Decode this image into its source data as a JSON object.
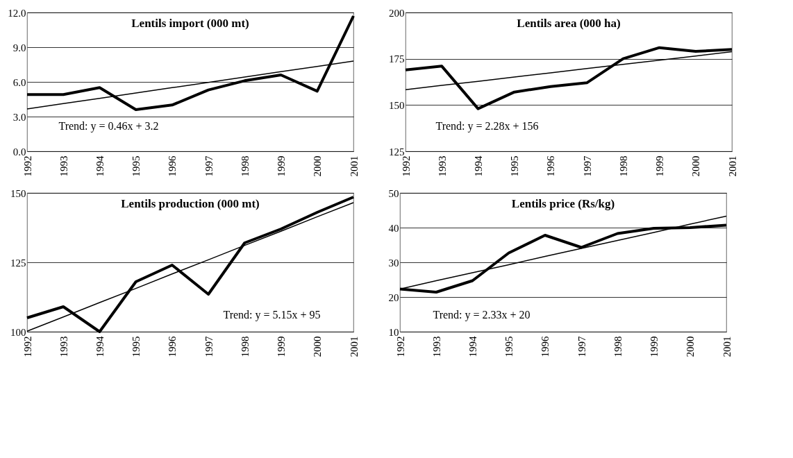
{
  "chart_data": [
    {
      "type": "line",
      "title": "Lentils import (000 mt)",
      "categories": [
        "1992",
        "1993",
        "1994",
        "1995",
        "1996",
        "1997",
        "1998",
        "1999",
        "2000",
        "2001"
      ],
      "series": [
        {
          "color": "#000000",
          "values": [
            4.9,
            4.9,
            5.5,
            3.6,
            4.0,
            5.3,
            6.1,
            6.6,
            5.2,
            11.7
          ]
        },
        {
          "type": "line",
          "color": "#000000",
          "values": [
            3.66,
            4.12,
            4.58,
            5.04,
            5.5,
            5.96,
            6.42,
            6.88,
            7.34,
            7.8
          ]
        }
      ],
      "ylim": [
        0,
        12
      ],
      "yticks": [
        {
          "value": 0,
          "label": "0.0"
        },
        {
          "value": 3,
          "label": "3.0"
        },
        {
          "value": 6,
          "label": "6.0"
        },
        {
          "value": 9,
          "label": "9.0"
        },
        {
          "value": 12,
          "label": "12.0"
        }
      ],
      "grid": "y",
      "marker": "none",
      "line_style": "solid",
      "annotations": [
        "Trend: y = 0.46x + 3.2"
      ]
    },
    {
      "type": "line",
      "title": "Lentils area (000 ha)",
      "categories": [
        "1992",
        "1993",
        "1994",
        "1995",
        "1996",
        "1997",
        "1998",
        "1999",
        "2000",
        "2001"
      ],
      "series": [
        {
          "color": "#000000",
          "values": [
            169,
            171,
            148,
            157,
            160,
            162,
            175,
            181,
            179,
            180
          ]
        },
        {
          "type": "line",
          "color": "#000000",
          "values": [
            158.3,
            160.6,
            162.8,
            165.1,
            167.4,
            169.7,
            172.0,
            174.2,
            176.5,
            178.8
          ]
        }
      ],
      "ylim": [
        125,
        200
      ],
      "yticks": [
        125,
        150,
        175,
        200
      ],
      "grid": "y",
      "marker": "none",
      "line_style": "solid",
      "annotations": [
        "Trend: y = 2.28x + 156"
      ]
    },
    {
      "type": "line",
      "title": "Lentils production (000 mt)",
      "categories": [
        "1992",
        "1993",
        "1994",
        "1995",
        "1996",
        "1997",
        "1998",
        "1999",
        "2000",
        "2001"
      ],
      "series": [
        {
          "color": "#000000",
          "values": [
            105,
            109,
            100,
            118,
            124,
            113.5,
            132,
            137,
            143,
            148.5
          ]
        },
        {
          "type": "line",
          "color": "#000000",
          "values": [
            100.2,
            105.3,
            110.5,
            115.6,
            120.8,
            125.9,
            131.1,
            136.2,
            141.4,
            146.5
          ]
        }
      ],
      "ylim": [
        100,
        150
      ],
      "yticks": [
        100,
        125,
        150
      ],
      "grid": "y",
      "marker": "none",
      "line_style": "solid",
      "annotations": [
        "Trend: y = 5.15x + 95"
      ]
    },
    {
      "type": "line",
      "title": "Lentils price (Rs/kg)",
      "categories": [
        "1992",
        "1993",
        "1994",
        "1995",
        "1996",
        "1997",
        "1998",
        "1999",
        "2000",
        "2001"
      ],
      "series": [
        {
          "color": "#000000",
          "values": [
            22.3,
            21.4,
            24.7,
            32.7,
            37.8,
            34.3,
            38.3,
            39.8,
            40.0,
            40.7
          ]
        },
        {
          "type": "line",
          "color": "#000000",
          "values": [
            22.3,
            24.7,
            27.0,
            29.3,
            31.7,
            34.0,
            36.3,
            38.6,
            41.0,
            43.3
          ]
        }
      ],
      "ylim": [
        10,
        50
      ],
      "yticks": [
        10,
        20,
        30,
        40,
        50
      ],
      "grid": "y",
      "marker": "none",
      "line_style": "solid",
      "annotations": [
        "Trend: y = 2.33x + 20"
      ]
    }
  ]
}
